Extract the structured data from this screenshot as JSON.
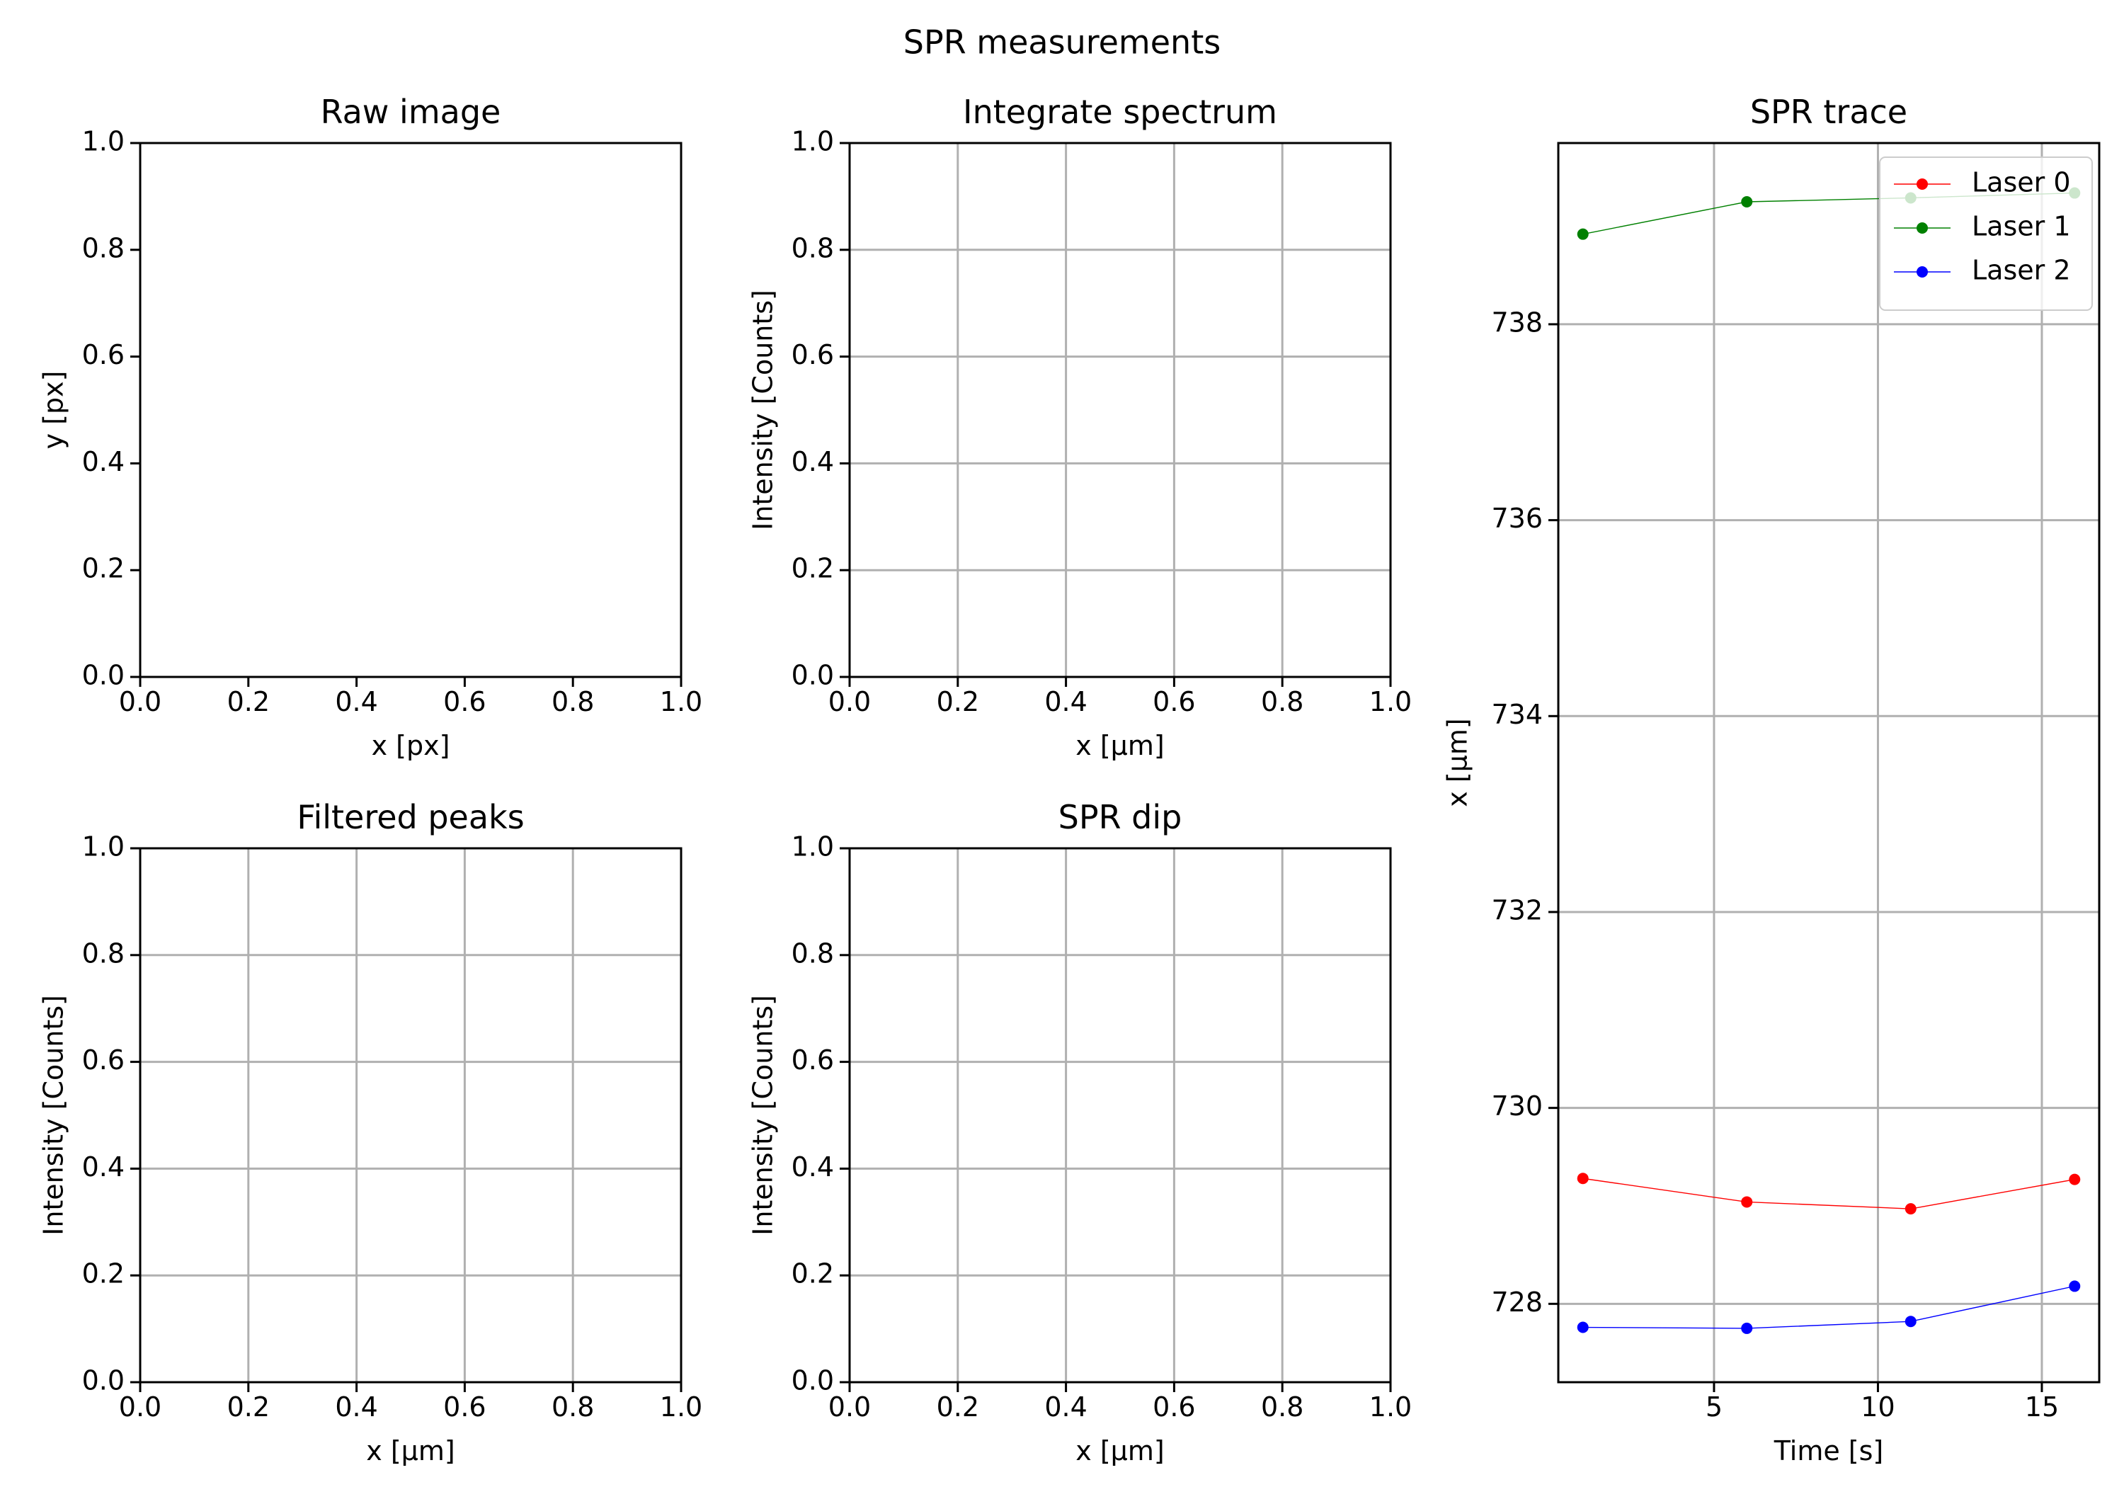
{
  "figure_title": "SPR measurements",
  "colors": {
    "grid": "#b0b0b0",
    "axes": "#000000",
    "laser_0": "#ff0000",
    "laser_1": "#008000",
    "laser_2": "#0000ff"
  },
  "chart_data": [
    {
      "id": "raw_image",
      "type": "image",
      "title": "Raw image",
      "xlabel": "x [px]",
      "ylabel": "y [px]",
      "xlim": [
        0,
        1
      ],
      "ylim": [
        0,
        1
      ],
      "xticks": [
        "0.0",
        "0.2",
        "0.4",
        "0.6",
        "0.8",
        "1.0"
      ],
      "yticks": [
        "0.0",
        "0.2",
        "0.4",
        "0.6",
        "0.8",
        "1.0"
      ],
      "grid": false,
      "series": []
    },
    {
      "id": "integrate_spectrum",
      "type": "line",
      "title": "Integrate spectrum",
      "xlabel": "x [μm]",
      "ylabel": "Intensity [Counts]",
      "xlim": [
        0,
        1
      ],
      "ylim": [
        0,
        1
      ],
      "xticks": [
        "0.0",
        "0.2",
        "0.4",
        "0.6",
        "0.8",
        "1.0"
      ],
      "yticks": [
        "0.0",
        "0.2",
        "0.4",
        "0.6",
        "0.8",
        "1.0"
      ],
      "grid": true,
      "series": []
    },
    {
      "id": "filtered_peaks",
      "type": "line",
      "title": "Filtered peaks",
      "xlabel": "x [μm]",
      "ylabel": "Intensity [Counts]",
      "xlim": [
        0,
        1
      ],
      "ylim": [
        0,
        1
      ],
      "xticks": [
        "0.0",
        "0.2",
        "0.4",
        "0.6",
        "0.8",
        "1.0"
      ],
      "yticks": [
        "0.0",
        "0.2",
        "0.4",
        "0.6",
        "0.8",
        "1.0"
      ],
      "grid": true,
      "series": []
    },
    {
      "id": "spr_dip",
      "type": "line",
      "title": "SPR dip",
      "xlabel": "x [μm]",
      "ylabel": "Intensity [Counts]",
      "xlim": [
        0,
        1
      ],
      "ylim": [
        0,
        1
      ],
      "xticks": [
        "0.0",
        "0.2",
        "0.4",
        "0.6",
        "0.8",
        "1.0"
      ],
      "yticks": [
        "0.0",
        "0.2",
        "0.4",
        "0.6",
        "0.8",
        "1.0"
      ],
      "grid": true,
      "series": []
    },
    {
      "id": "spr_trace",
      "type": "line",
      "title": "SPR trace",
      "xlabel": "Time [s]",
      "ylabel": "x [μm]",
      "xlim": [
        0.25,
        16.75
      ],
      "ylim": [
        727.2,
        739.85
      ],
      "xticks": [
        5,
        10,
        15
      ],
      "yticks": [
        728,
        730,
        732,
        734,
        736,
        738
      ],
      "grid": true,
      "legend": "top-right",
      "series": [
        {
          "name": "Laser 0",
          "color": "#ff0000",
          "x": [
            1,
            6,
            11,
            16
          ],
          "y": [
            729.28,
            729.04,
            728.97,
            729.27
          ]
        },
        {
          "name": "Laser 1",
          "color": "#008000",
          "x": [
            1,
            6,
            11,
            16
          ],
          "y": [
            738.92,
            739.25,
            739.29,
            739.34
          ]
        },
        {
          "name": "Laser 2",
          "color": "#0000ff",
          "x": [
            1,
            6,
            11,
            16
          ],
          "y": [
            727.76,
            727.75,
            727.82,
            728.18
          ]
        }
      ]
    }
  ]
}
